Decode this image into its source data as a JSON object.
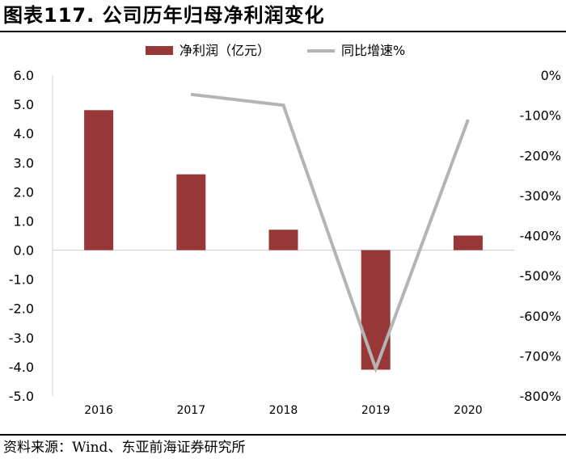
{
  "figure": {
    "title": "图表117. 公司历年归母净利润变化",
    "source": "资料来源：Wind、东亚前海证券研究所"
  },
  "colors": {
    "bar": "#983737",
    "line": "#b4b4b4",
    "zero_line": "#d0d0d0"
  },
  "chart_data": {
    "type": "bar",
    "categories": [
      "2016",
      "2017",
      "2018",
      "2019",
      "2020"
    ],
    "series": [
      {
        "name": "净利润（亿元）",
        "type": "bar",
        "axis": "left",
        "values": [
          4.8,
          2.6,
          0.7,
          -4.1,
          0.5
        ]
      },
      {
        "name": "同比增速%",
        "type": "line",
        "axis": "right",
        "values": [
          null,
          -48,
          -75,
          -732,
          -111
        ]
      }
    ],
    "y_left": {
      "min": -5.0,
      "max": 6.0,
      "ticks": [
        6.0,
        5.0,
        4.0,
        3.0,
        2.0,
        1.0,
        0.0,
        -1.0,
        -2.0,
        -3.0,
        -4.0,
        -5.0
      ],
      "tick_labels": [
        "6.0",
        "5.0",
        "4.0",
        "3.0",
        "2.0",
        "1.0",
        "0.0",
        "-1.0",
        "-2.0",
        "-3.0",
        "-4.0",
        "-5.0"
      ]
    },
    "y_right": {
      "min": -800,
      "max": 0,
      "ticks": [
        0,
        -100,
        -200,
        -300,
        -400,
        -500,
        -600,
        -700,
        -800
      ],
      "tick_labels": [
        "0%",
        "-100%",
        "-200%",
        "-300%",
        "-400%",
        "-500%",
        "-600%",
        "-700%",
        "-800%"
      ]
    },
    "legend_position": "top-center",
    "grid": false
  }
}
